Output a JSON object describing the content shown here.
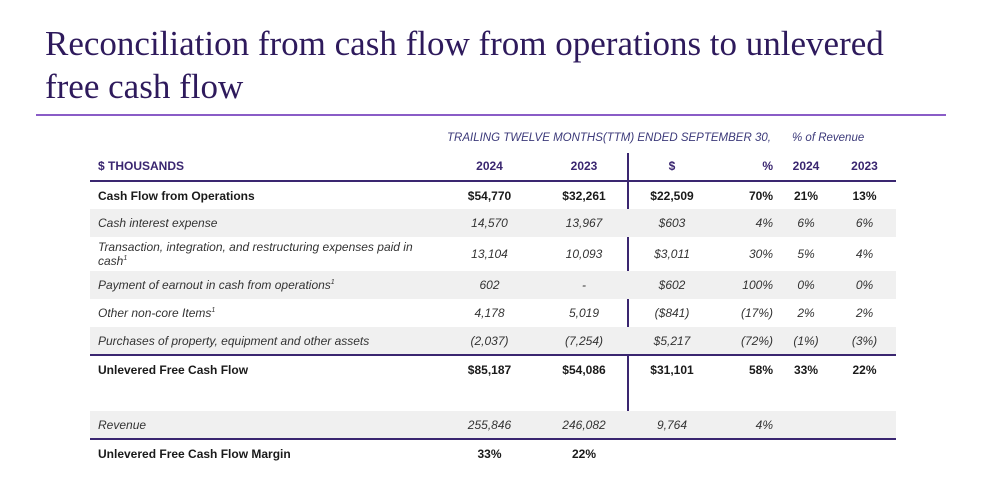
{
  "title": "Reconciliation from cash flow from operations to unlevered free cash flow",
  "captions": {
    "ttm": "TRAILING TWELVE MONTHS(TTM) ENDED SEPTEMBER 30,",
    "pct_revenue": "% of Revenue"
  },
  "header": {
    "label": "$ THOUSANDS",
    "y2024": "2024",
    "y2023": "2023",
    "change": "$",
    "pct": "%",
    "rev2024": "2024",
    "rev2023": "2023"
  },
  "rows": [
    {
      "label": "Cash Flow from Operations",
      "sup": "",
      "v2024": "$54,770",
      "v2023": "$32,261",
      "change": "$22,509",
      "pct": "70%",
      "rev2024": "21%",
      "rev2023": "13%"
    },
    {
      "label": "Cash interest expense",
      "sup": "",
      "v2024": "14,570",
      "v2023": "13,967",
      "change": "$603",
      "pct": "4%",
      "rev2024": "6%",
      "rev2023": "6%"
    },
    {
      "label": "Transaction, integration, and restructuring expenses paid in cash",
      "sup": "1",
      "v2024": "13,104",
      "v2023": "10,093",
      "change": "$3,011",
      "pct": "30%",
      "rev2024": "5%",
      "rev2023": "4%"
    },
    {
      "label": "Payment of earnout in cash from operations",
      "sup": "1",
      "v2024": "602",
      "v2023": "-",
      "change": "$602",
      "pct": "100%",
      "rev2024": "0%",
      "rev2023": "0%"
    },
    {
      "label": "Other non-core Items",
      "sup": "1",
      "v2024": "4,178",
      "v2023": "5,019",
      "change": "($841)",
      "pct": "(17%)",
      "rev2024": "2%",
      "rev2023": "2%"
    },
    {
      "label": "Purchases of property, equipment and other assets",
      "sup": "",
      "v2024": "(2,037)",
      "v2023": "(7,254)",
      "change": "$5,217",
      "pct": "(72%)",
      "rev2024": "(1%)",
      "rev2023": "(3%)"
    },
    {
      "label": "Unlevered Free Cash Flow",
      "sup": "",
      "v2024": "$85,187",
      "v2023": "$54,086",
      "change": "$31,101",
      "pct": "58%",
      "rev2024": "33%",
      "rev2023": "22%"
    },
    {
      "label": "Revenue",
      "sup": "",
      "v2024": "255,846",
      "v2023": "246,082",
      "change": "9,764",
      "pct": "4%",
      "rev2024": "",
      "rev2023": ""
    },
    {
      "label": "Unlevered Free Cash Flow Margin",
      "sup": "",
      "v2024": "33%",
      "v2023": "22%",
      "change": "",
      "pct": "",
      "rev2024": "",
      "rev2023": ""
    }
  ]
}
